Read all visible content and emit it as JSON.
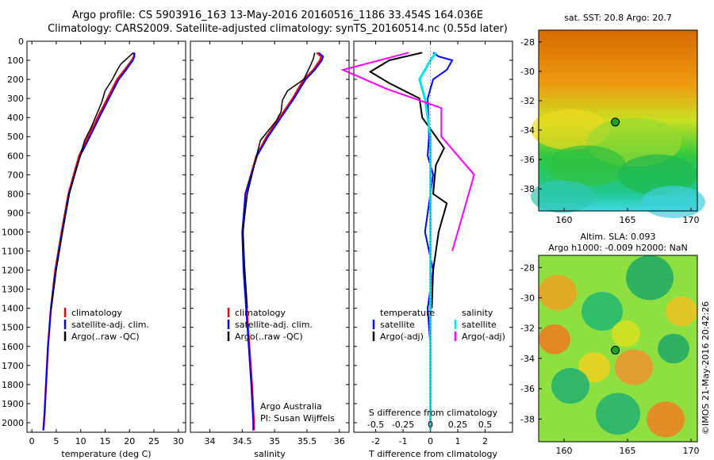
{
  "header": {
    "title_line1": "Argo profile: CS 5903916_163 13-May-2016 20160516_1186 33.454S 164.036E",
    "title_line2": "Climatology: CARS2009. Satellite-adjusted climatology: synTS_20160514.nc (0.55d later)"
  },
  "colors": {
    "climatology": "#ff0000",
    "satellite": "#0000ff",
    "argo": "#000000",
    "sal_satellite": "#00e5ee",
    "sal_argo": "#ff00ff"
  },
  "depth_axis": {
    "ticks": [
      0,
      100,
      200,
      300,
      400,
      500,
      600,
      700,
      800,
      900,
      1000,
      1100,
      1200,
      1300,
      1400,
      1500,
      1600,
      1700,
      1800,
      1900,
      2000
    ],
    "ylim": [
      2050,
      0
    ]
  },
  "chart_data": [
    {
      "type": "line",
      "xlabel": "temperature (deg C)",
      "xlim": [
        -1,
        31.5
      ],
      "xticks": [
        0,
        5,
        10,
        15,
        20,
        25,
        30
      ],
      "legend": {
        "placement": "lower-left",
        "entries": [
          "climatology",
          "satellite-adj. clim.",
          "Argo(..raw -QC)"
        ]
      },
      "series": [
        {
          "name": "climatology",
          "x": [
            21,
            20.9,
            20.5,
            19,
            17.5,
            15.5,
            13.5,
            11.6,
            9.7,
            7.5,
            6.1,
            4.8,
            3.9,
            3.3,
            2.9,
            2.6,
            2.45,
            2.35
          ],
          "y": [
            60,
            80,
            100,
            150,
            200,
            300,
            400,
            500,
            600,
            800,
            1000,
            1200,
            1400,
            1600,
            1800,
            1950,
            2010,
            2040
          ]
        },
        {
          "name": "satellite-adj. clim.",
          "x": [
            21,
            21,
            20.7,
            19.3,
            17.8,
            15.8,
            13.8,
            11.9,
            9.9,
            7.6,
            6.2,
            4.9,
            3.9,
            3.3,
            2.9,
            2.6,
            2.45,
            2.35
          ],
          "y": [
            60,
            80,
            100,
            150,
            200,
            300,
            400,
            500,
            600,
            800,
            1000,
            1200,
            1400,
            1600,
            1800,
            1950,
            2010,
            2040
          ]
        },
        {
          "name": "Argo(..raw -QC)",
          "x": [
            20.8,
            19.5,
            18.2,
            17.5,
            16.5,
            15,
            14.3,
            13,
            12,
            10.8,
            9.9,
            7.7,
            6.3,
            5,
            4
          ],
          "y": [
            60,
            90,
            120,
            150,
            200,
            260,
            320,
            400,
            460,
            520,
            600,
            800,
            1000,
            1200,
            1400
          ]
        }
      ]
    },
    {
      "type": "line",
      "xlabel": "salinity",
      "xlim": [
        33.7,
        36.15
      ],
      "xticks": [
        34,
        34.5,
        35,
        35.5,
        36
      ],
      "legend": {
        "placement": "lower-left",
        "entries": [
          "climatology",
          "satellite-adj. clim.",
          "Argo(..raw -QC)"
        ]
      },
      "annotation": [
        "Argo Australia",
        "PI: Susan Wijffels"
      ],
      "series": [
        {
          "name": "climatology",
          "x": [
            35.65,
            35.72,
            35.7,
            35.6,
            35.45,
            35.28,
            35.08,
            34.88,
            34.72,
            34.55,
            34.51,
            34.53,
            34.57,
            34.61,
            34.65,
            34.68,
            34.68
          ],
          "y": [
            60,
            80,
            100,
            150,
            200,
            300,
            400,
            500,
            600,
            800,
            1000,
            1200,
            1400,
            1600,
            1800,
            2000,
            2040
          ]
        },
        {
          "name": "satellite-adj. clim.",
          "x": [
            35.68,
            35.75,
            35.73,
            35.62,
            35.48,
            35.3,
            35.1,
            34.9,
            34.73,
            34.55,
            34.5,
            34.52,
            34.56,
            34.6,
            34.64,
            34.67,
            34.67
          ],
          "y": [
            60,
            80,
            100,
            150,
            200,
            300,
            400,
            500,
            600,
            800,
            1000,
            1200,
            1400,
            1600,
            1800,
            2000,
            2040
          ]
        },
        {
          "name": "Argo(..raw -QC)",
          "x": [
            35.62,
            35.6,
            35.55,
            35.45,
            35.2,
            35.12,
            35.1,
            35.02,
            34.9,
            34.78,
            34.58,
            34.51,
            34.54,
            34.58
          ],
          "y": [
            60,
            90,
            130,
            200,
            260,
            310,
            370,
            420,
            470,
            520,
            800,
            1000,
            1200,
            1400
          ]
        }
      ]
    },
    {
      "type": "line",
      "xlabel_top": "S difference from climatology",
      "xlabel": "T difference from climatology",
      "xlim": [
        -2.8,
        3.0
      ],
      "xticks": [
        -2,
        -1,
        0,
        1,
        2
      ],
      "xticks_top": [
        -0.5,
        -0.25,
        0,
        0.25,
        0.5
      ],
      "legend": {
        "placement": "lower-center",
        "entries": [
          "temperature",
          "satellite",
          "Argo(-adj)",
          "salinity",
          "satellite",
          "Argo(-adj)"
        ]
      },
      "series": [
        {
          "name": "satellite",
          "x": [
            0.1,
            0.3,
            0.8,
            0.6,
            0.1,
            -0.1,
            -0.05,
            -0.1,
            0.1,
            -0.2,
            0.1,
            -0.1,
            0,
            0
          ],
          "y": [
            60,
            80,
            100,
            150,
            200,
            300,
            500,
            600,
            700,
            1000,
            1200,
            1400,
            1600,
            2040
          ]
        },
        {
          "name": "Argo(-adj)",
          "x": [
            -0.3,
            -1.5,
            -2.2,
            -1.5,
            -0.4,
            -0.3,
            0.5,
            0.2,
            0.1,
            0.6,
            0.3,
            0.1,
            0.05
          ],
          "y": [
            60,
            100,
            160,
            220,
            300,
            400,
            560,
            650,
            800,
            850,
            1000,
            1200,
            1400
          ]
        },
        {
          "name": "satellite",
          "x": [
            0.05,
            0,
            -0.1,
            -0.05,
            0,
            0,
            0,
            0
          ],
          "y": [
            60,
            100,
            200,
            300,
            500,
            800,
            1200,
            2040
          ]
        },
        {
          "name": "Argo(-adj)",
          "x": [
            -0.2,
            -0.8,
            -0.4,
            0.1,
            0.1,
            0.4,
            0.3,
            0.2
          ],
          "y": [
            60,
            150,
            250,
            350,
            500,
            700,
            900,
            1100
          ]
        }
      ]
    }
  ],
  "maps": {
    "sst": {
      "title": "sat. SST: 20.8 Argo: 20.7",
      "yticks": [
        "-28",
        "-30",
        "-32",
        "-34",
        "-36",
        "-38"
      ],
      "xticks": [
        "160",
        "165",
        "170"
      ]
    },
    "sla": {
      "title1": "Altim. SLA: 0.093",
      "title2": "Argo h1000: -0.009 h2000: NaN",
      "yticks": [
        "-28",
        "-30",
        "-32",
        "-34",
        "-36",
        "-38"
      ],
      "xticks": [
        "160",
        "165",
        "170"
      ]
    }
  },
  "footer": {
    "stamp": "©IMOS 21-May-2016 20:42:26"
  }
}
